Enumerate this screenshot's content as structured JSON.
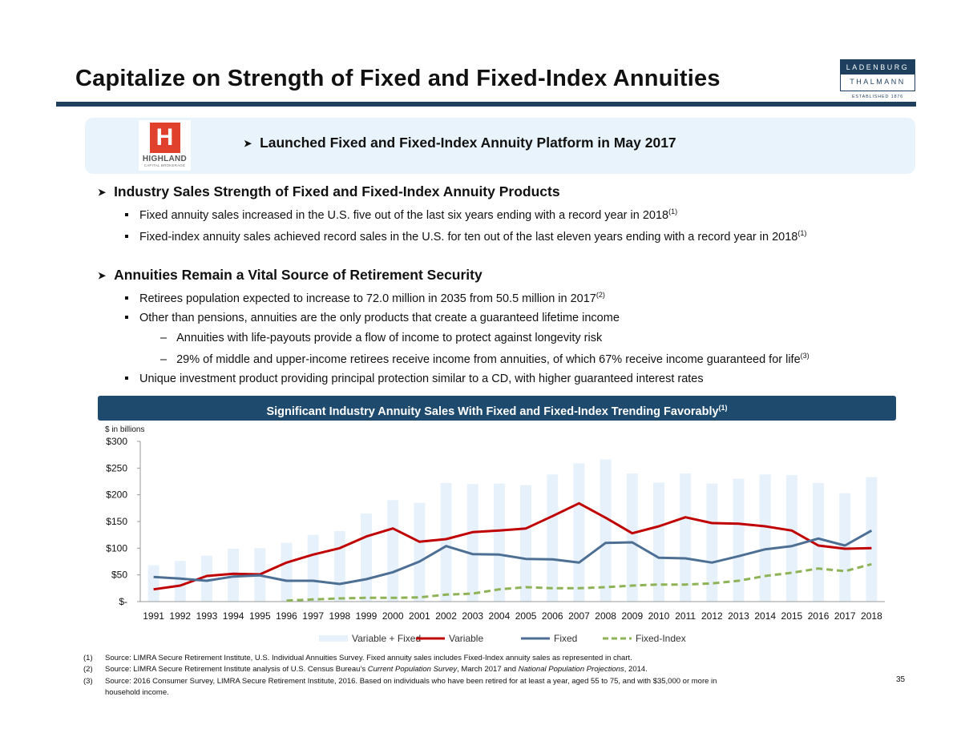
{
  "page_title": "Capitalize on Strength of Fixed and Fixed-Index Annuities",
  "logo": {
    "line1": "LADENBURG",
    "line2": "THALMANN",
    "line3": "ESTABLISHED 1876"
  },
  "highland_logo": {
    "letter": "H",
    "name": "HIGHLAND",
    "subtitle": "CAPITAL BROKERAGE"
  },
  "banner_text": "Launched Fixed and Fixed-Index Annuity Platform in May 2017",
  "section1": {
    "heading": "Industry Sales Strength of Fixed and Fixed-Index Annuity Products",
    "bullets": [
      {
        "text": "Fixed annuity sales increased in the U.S. five out of the last six years ending with a record year in 2018",
        "sup": "(1)"
      },
      {
        "text": "Fixed-index annuity sales achieved record sales in the U.S. for ten out of the last eleven years ending with a record year in 2018",
        "sup": "(1)"
      }
    ]
  },
  "section2": {
    "heading": "Annuities Remain a Vital Source of Retirement Security",
    "bullet1": {
      "text": "Retirees population expected to increase to 72.0 million in 2035 from 50.5 million in 2017",
      "sup": "(2)"
    },
    "bullet2": {
      "text": "Other than pensions, annuities are the only products that create a guaranteed lifetime income"
    },
    "sub1": {
      "text": "Annuities with life-payouts provide a flow of income to protect against longevity risk"
    },
    "sub2": {
      "text": "29% of middle and upper-income retirees receive income from annuities, of which 67% receive income guaranteed for life",
      "sup": "(3)"
    },
    "bullet3": {
      "text": "Unique investment product providing principal protection similar to a CD, with higher guaranteed interest rates"
    }
  },
  "chart_banner": {
    "text": "Significant Industry Annuity Sales With Fixed and Fixed-Index Trending Favorably",
    "sup": "(1)"
  },
  "chart_data": {
    "type": "bar",
    "title": "Significant Industry Annuity Sales With Fixed and Fixed-Index Trending Favorably",
    "unit_label": "$ in billions",
    "ylim": [
      0,
      300
    ],
    "y_ticks": [
      0,
      50,
      100,
      150,
      200,
      250,
      300
    ],
    "y_tick_labels": [
      "$-",
      "$50",
      "$100",
      "$150",
      "$200",
      "$250",
      "$300"
    ],
    "categories": [
      "1991",
      "1992",
      "1993",
      "1994",
      "1995",
      "1996",
      "1997",
      "1998",
      "1999",
      "2000",
      "2001",
      "2002",
      "2003",
      "2004",
      "2005",
      "2006",
      "2007",
      "2008",
      "2009",
      "2010",
      "2011",
      "2012",
      "2013",
      "2014",
      "2015",
      "2016",
      "2017",
      "2018"
    ],
    "series": [
      {
        "name": "Variable + Fixed",
        "type": "bar",
        "color": "#e6f1fb",
        "values": [
          68,
          76,
          86,
          99,
          100,
          110,
          125,
          132,
          165,
          190,
          185,
          222,
          220,
          221,
          218,
          238,
          259,
          266,
          240,
          223,
          240,
          221,
          230,
          238,
          237,
          222,
          203,
          233
        ]
      },
      {
        "name": "Variable",
        "type": "line",
        "color": "#c00000",
        "values": [
          23,
          30,
          48,
          52,
          51,
          73,
          88,
          100,
          122,
          137,
          112,
          117,
          130,
          133,
          137,
          160,
          184,
          157,
          128,
          141,
          158,
          147,
          146,
          141,
          133,
          105,
          99,
          100
        ]
      },
      {
        "name": "Fixed",
        "type": "line",
        "color": "#4d6f94",
        "values": [
          46,
          43,
          39,
          47,
          49,
          39,
          39,
          33,
          42,
          55,
          75,
          104,
          89,
          88,
          80,
          79,
          73,
          110,
          111,
          82,
          81,
          73,
          85,
          98,
          104,
          118,
          105,
          133
        ]
      },
      {
        "name": "Fixed-Index",
        "type": "dashed-line",
        "color": "#8db356",
        "values": [
          null,
          null,
          null,
          null,
          null,
          2,
          4,
          6,
          7,
          7,
          8,
          13,
          15,
          23,
          27,
          25,
          25,
          27,
          30,
          32,
          32,
          34,
          39,
          48,
          54,
          62,
          57,
          70
        ]
      }
    ],
    "legend_position": "bottom"
  },
  "footnotes": [
    {
      "num": "(1)",
      "parts": [
        {
          "t": "Source: LIMRA Secure Retirement Institute, U.S. Individual Annuities Survey.  Fixed annuity sales includes Fixed-Index annuity sales as represented in chart."
        }
      ]
    },
    {
      "num": "(2)",
      "parts": [
        {
          "t": "Source: LIMRA Secure Retirement Institute analysis of U.S. Census Bureau’s "
        },
        {
          "t": "Current Population Survey",
          "i": true
        },
        {
          "t": ", March 2017 and "
        },
        {
          "t": "National Population Projections",
          "i": true
        },
        {
          "t": ", 2014."
        }
      ]
    },
    {
      "num": "(3)",
      "parts": [
        {
          "t": "Source: 2016 Consumer Survey, LIMRA Secure Retirement Institute, 2016. Based on individuals who have been retired for at least a year, aged 55 to 75, and with $35,000 or more in"
        }
      ]
    }
  ],
  "footnote3_cont": "household income.",
  "page_number": "35"
}
